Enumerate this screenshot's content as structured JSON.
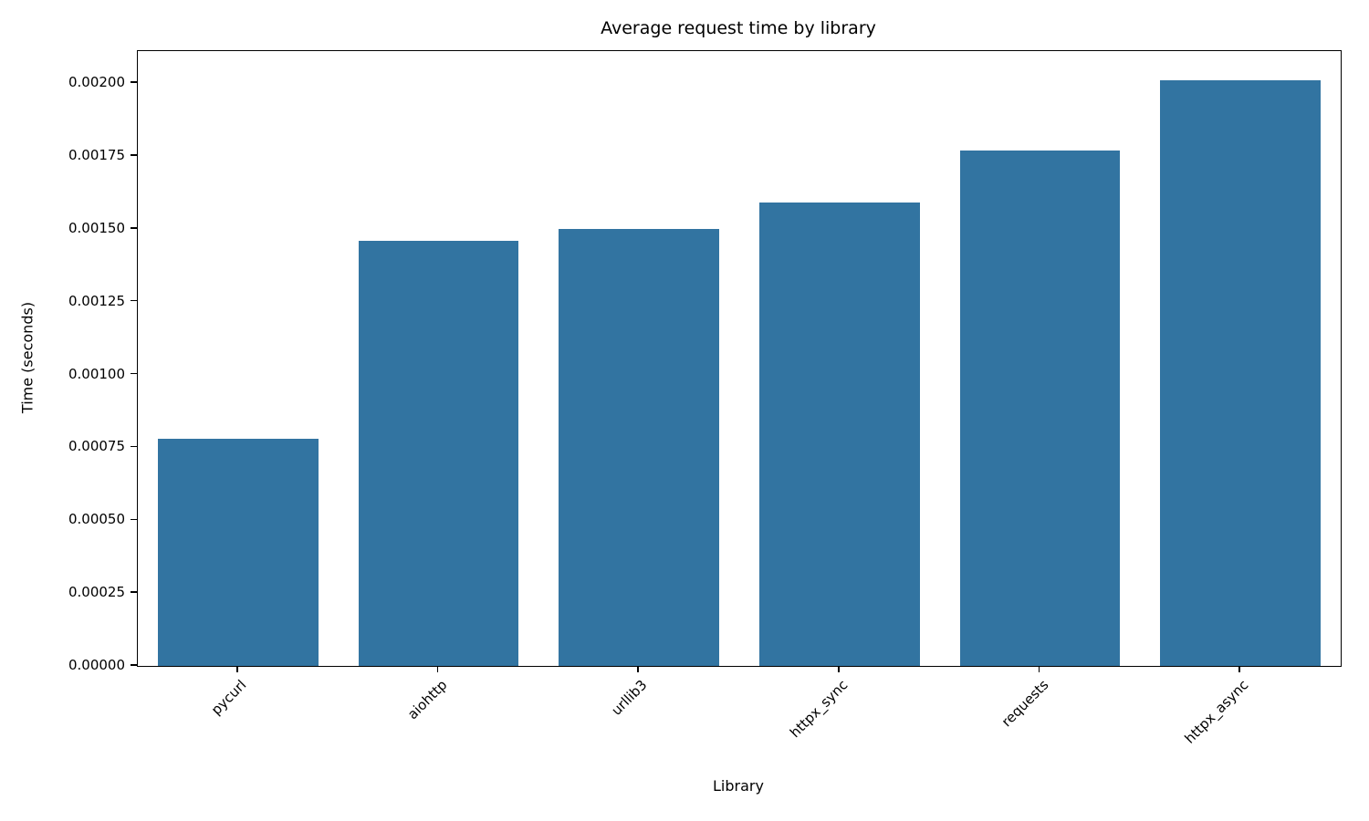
{
  "chart_data": {
    "type": "bar",
    "title": "Average request time by library",
    "xlabel": "Library",
    "ylabel": "Time (seconds)",
    "categories": [
      "pycurl",
      "aiohttp",
      "urllib3",
      "httpx_sync",
      "requests",
      "httpx_async"
    ],
    "values": [
      0.00078,
      0.00146,
      0.0015,
      0.00159,
      0.00177,
      0.00201
    ],
    "bar_color": "#3274a1",
    "ylim": [
      0,
      0.00211
    ],
    "yticks": [
      0,
      0.00025,
      0.0005,
      0.00075,
      0.001,
      0.00125,
      0.0015,
      0.00175,
      0.002
    ],
    "ytick_labels": [
      "0.00000",
      "0.00025",
      "0.00050",
      "0.00075",
      "0.00100",
      "0.00125",
      "0.00150",
      "0.00175",
      "0.00200"
    ],
    "bar_width_fraction": 0.8,
    "x_tick_rotation": 45,
    "grid": false,
    "legend": "none",
    "background": "#ffffff"
  }
}
